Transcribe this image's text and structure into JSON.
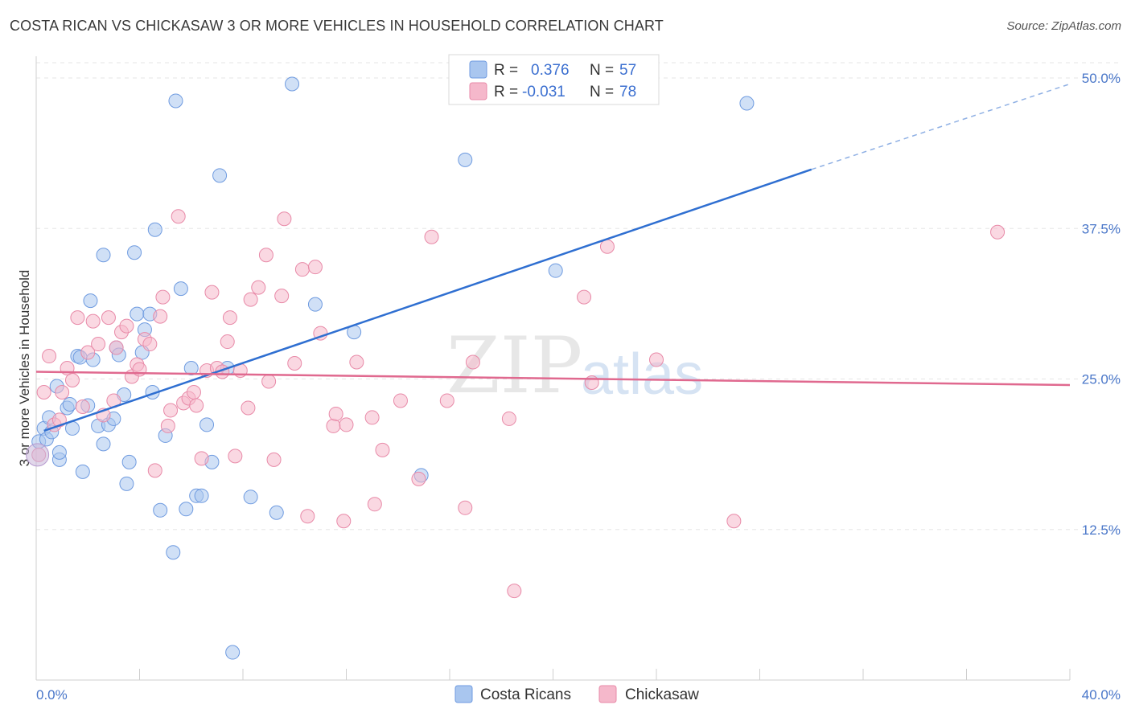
{
  "title": "COSTA RICAN VS CHICKASAW 3 OR MORE VEHICLES IN HOUSEHOLD CORRELATION CHART",
  "source": "Source: ZipAtlas.com",
  "watermark": {
    "zip": "ZIP",
    "atlas": "atlas"
  },
  "legend": {
    "r_label": "R =",
    "n_label": "N =",
    "rows": [
      {
        "r": "0.376",
        "n": "57",
        "color": "#a9c6ef"
      },
      {
        "r": "-0.031",
        "n": "78",
        "color": "#f5b8cb"
      }
    ]
  },
  "chart_data": {
    "type": "scatter",
    "title": "COSTA RICAN VS CHICKASAW 3 OR MORE VEHICLES IN HOUSEHOLD CORRELATION CHART",
    "xlabel": "",
    "ylabel": "3 or more Vehicles in Household",
    "xlim": [
      0,
      40
    ],
    "ylim": [
      0,
      50
    ],
    "x_tick_labels": [
      "0.0%",
      "40.0%"
    ],
    "y_ticks": [
      12.5,
      25.0,
      37.5,
      50.0
    ],
    "y_tick_labels": [
      "12.5%",
      "25.0%",
      "37.5%",
      "50.0%"
    ],
    "grid": true,
    "legend_position": "top-center",
    "series": [
      {
        "name": "Costa Ricans",
        "color": "#a9c6ef",
        "edge": "#6f9be0",
        "line_color": "#2f6fd1",
        "trend": {
          "x0": 0.3,
          "y0": 20.7,
          "x1": 30.0,
          "y1": 42.4,
          "dash_x1": 40.0,
          "dash_y1": 49.5
        },
        "points": [
          [
            0.1,
            19.8
          ],
          [
            0.3,
            20.9
          ],
          [
            0.4,
            20.0
          ],
          [
            0.5,
            21.8
          ],
          [
            0.6,
            20.6
          ],
          [
            0.8,
            24.4
          ],
          [
            0.9,
            18.3
          ],
          [
            0.9,
            18.9
          ],
          [
            1.2,
            22.6
          ],
          [
            1.3,
            22.9
          ],
          [
            1.4,
            20.9
          ],
          [
            1.6,
            26.9
          ],
          [
            1.7,
            26.8
          ],
          [
            1.8,
            17.3
          ],
          [
            2.0,
            22.8
          ],
          [
            2.1,
            31.5
          ],
          [
            2.2,
            26.6
          ],
          [
            2.4,
            21.1
          ],
          [
            2.6,
            35.3
          ],
          [
            2.6,
            19.6
          ],
          [
            2.8,
            21.2
          ],
          [
            3.0,
            21.7
          ],
          [
            3.1,
            27.6
          ],
          [
            3.2,
            27.0
          ],
          [
            3.4,
            23.7
          ],
          [
            3.5,
            16.3
          ],
          [
            3.6,
            18.1
          ],
          [
            3.8,
            35.5
          ],
          [
            3.9,
            30.4
          ],
          [
            4.1,
            27.2
          ],
          [
            4.2,
            29.1
          ],
          [
            4.4,
            30.4
          ],
          [
            4.5,
            23.9
          ],
          [
            4.6,
            37.4
          ],
          [
            4.8,
            14.1
          ],
          [
            5.0,
            20.3
          ],
          [
            5.3,
            10.6
          ],
          [
            5.4,
            48.1
          ],
          [
            5.6,
            32.5
          ],
          [
            5.8,
            14.2
          ],
          [
            6.0,
            25.9
          ],
          [
            6.2,
            15.3
          ],
          [
            6.4,
            15.3
          ],
          [
            6.6,
            21.2
          ],
          [
            6.8,
            18.1
          ],
          [
            7.1,
            41.9
          ],
          [
            7.4,
            25.9
          ],
          [
            7.6,
            2.3
          ],
          [
            8.3,
            15.2
          ],
          [
            9.3,
            13.9
          ],
          [
            9.9,
            49.5
          ],
          [
            10.8,
            31.2
          ],
          [
            12.3,
            28.9
          ],
          [
            14.9,
            17.0
          ],
          [
            16.6,
            43.2
          ],
          [
            20.1,
            34.0
          ],
          [
            27.5,
            47.9
          ]
        ]
      },
      {
        "name": "Chickasaw",
        "color": "#f5b8cb",
        "edge": "#e88aa8",
        "line_color": "#e0698f",
        "trend": {
          "x0": 0.0,
          "y0": 25.6,
          "x1": 40.0,
          "y1": 24.5
        },
        "points": [
          [
            0.1,
            18.7
          ],
          [
            0.3,
            23.9
          ],
          [
            0.5,
            26.9
          ],
          [
            0.7,
            21.2
          ],
          [
            0.9,
            21.6
          ],
          [
            1.0,
            23.9
          ],
          [
            1.2,
            25.9
          ],
          [
            1.4,
            24.9
          ],
          [
            1.6,
            30.1
          ],
          [
            1.8,
            22.7
          ],
          [
            2.0,
            27.2
          ],
          [
            2.2,
            29.8
          ],
          [
            2.4,
            27.9
          ],
          [
            2.6,
            22.0
          ],
          [
            2.8,
            30.1
          ],
          [
            3.0,
            23.2
          ],
          [
            3.1,
            27.6
          ],
          [
            3.3,
            28.9
          ],
          [
            3.5,
            29.4
          ],
          [
            3.7,
            25.2
          ],
          [
            3.9,
            26.2
          ],
          [
            4.0,
            25.8
          ],
          [
            4.2,
            28.3
          ],
          [
            4.4,
            27.9
          ],
          [
            4.6,
            17.4
          ],
          [
            4.8,
            30.2
          ],
          [
            4.9,
            31.8
          ],
          [
            5.1,
            21.1
          ],
          [
            5.2,
            22.4
          ],
          [
            5.5,
            38.5
          ],
          [
            5.7,
            23.0
          ],
          [
            5.9,
            23.4
          ],
          [
            6.1,
            23.9
          ],
          [
            6.2,
            22.8
          ],
          [
            6.4,
            18.4
          ],
          [
            6.6,
            25.7
          ],
          [
            6.8,
            32.2
          ],
          [
            7.0,
            25.9
          ],
          [
            7.2,
            25.6
          ],
          [
            7.4,
            28.1
          ],
          [
            7.5,
            30.1
          ],
          [
            7.7,
            18.6
          ],
          [
            7.9,
            25.7
          ],
          [
            8.2,
            22.6
          ],
          [
            8.3,
            31.6
          ],
          [
            8.6,
            32.6
          ],
          [
            8.9,
            35.3
          ],
          [
            9.0,
            24.8
          ],
          [
            9.2,
            18.3
          ],
          [
            9.5,
            31.9
          ],
          [
            9.6,
            38.3
          ],
          [
            10.0,
            26.3
          ],
          [
            10.3,
            34.1
          ],
          [
            10.5,
            13.6
          ],
          [
            10.8,
            34.3
          ],
          [
            11.0,
            28.8
          ],
          [
            11.5,
            21.1
          ],
          [
            11.6,
            22.1
          ],
          [
            11.9,
            13.2
          ],
          [
            12.0,
            21.2
          ],
          [
            12.4,
            26.4
          ],
          [
            13.0,
            21.8
          ],
          [
            13.1,
            14.6
          ],
          [
            13.4,
            19.1
          ],
          [
            14.1,
            23.2
          ],
          [
            14.8,
            16.7
          ],
          [
            15.3,
            36.8
          ],
          [
            15.9,
            23.2
          ],
          [
            16.6,
            14.3
          ],
          [
            16.9,
            26.4
          ],
          [
            18.3,
            21.7
          ],
          [
            18.5,
            7.4
          ],
          [
            21.2,
            31.8
          ],
          [
            21.5,
            24.7
          ],
          [
            22.1,
            36.0
          ],
          [
            24.0,
            26.6
          ],
          [
            27.0,
            13.2
          ],
          [
            37.2,
            37.2
          ]
        ]
      }
    ]
  }
}
